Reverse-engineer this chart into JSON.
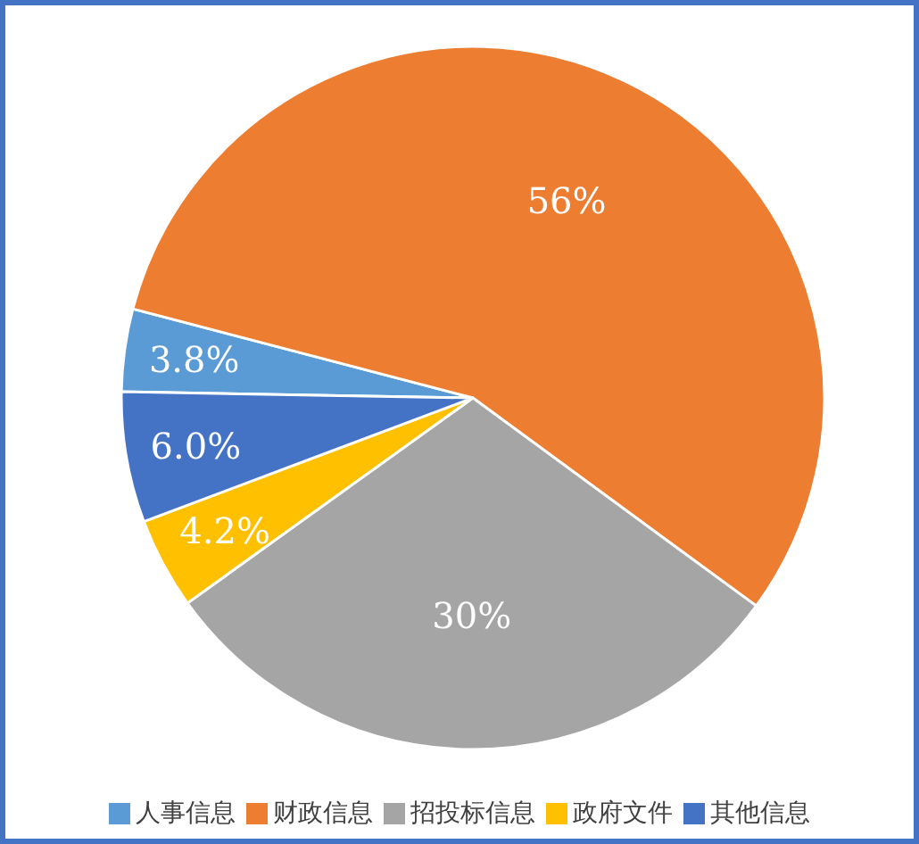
{
  "chart_data": {
    "type": "pie",
    "categories": [
      "人事信息",
      "财政信息",
      "招投标信息",
      "政府文件",
      "其他信息"
    ],
    "values": [
      3.8,
      56,
      30,
      4.2,
      6.0
    ],
    "colors": [
      "#5b9bd5",
      "#ed7d31",
      "#a5a5a5",
      "#ffc000",
      "#4472c4"
    ],
    "value_labels": [
      "3.8%",
      "56%",
      "30%",
      "4.2%",
      "6.0%"
    ],
    "legend": "bottom"
  }
}
